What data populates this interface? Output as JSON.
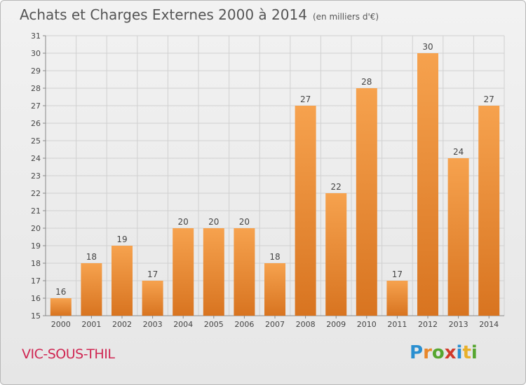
{
  "title": "Achats et Charges Externes 2000 à 2014",
  "unit": "(en milliers d'€)",
  "location": "VIC-SOUS-THIL",
  "logo_text": "Proxiti",
  "colors": {
    "bar_light": "#f6a24e",
    "bar_dark": "#d87420",
    "city": "#d02652"
  },
  "chart_data": {
    "type": "bar",
    "categories": [
      "2000",
      "2001",
      "2002",
      "2003",
      "2004",
      "2005",
      "2006",
      "2007",
      "2008",
      "2009",
      "2010",
      "2011",
      "2012",
      "2013",
      "2014"
    ],
    "values": [
      16,
      18,
      19,
      17,
      20,
      20,
      20,
      18,
      27,
      22,
      28,
      17,
      30,
      24,
      27
    ],
    "ylim": [
      15,
      31
    ],
    "yticks": [
      15,
      16,
      17,
      18,
      19,
      20,
      21,
      22,
      23,
      24,
      25,
      26,
      27,
      28,
      29,
      30,
      31
    ],
    "grid": true
  }
}
